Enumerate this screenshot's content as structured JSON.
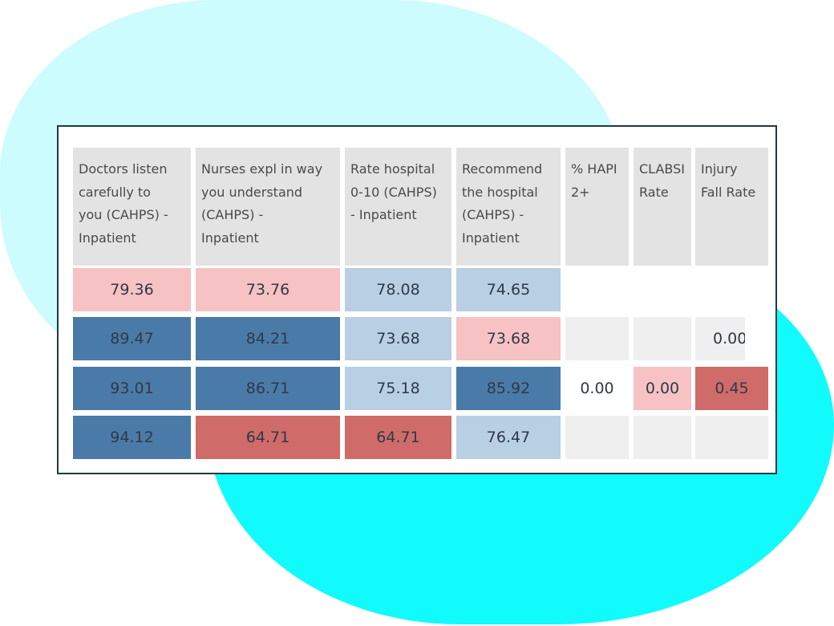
{
  "table": {
    "headers": [
      "Doctors listen\ncarefully to\nyou (CAHPS) -\nInpatient",
      "Nurses expl in way\nyou understand\n(CAHPS) -\nInpatient",
      "Rate hospital\n0-10 (CAHPS)\n- Inpatient",
      "Recommend\nthe hospital\n(CAHPS) -\nInpatient",
      "% HAPI\n2+",
      "CLABSI\nRate",
      "Injury\nFall Rate"
    ],
    "rows": [
      [
        "79.36",
        "73.76",
        "78.08",
        "74.65",
        "",
        "",
        ""
      ],
      [
        "89.47",
        "84.21",
        "73.68",
        "73.68",
        "",
        "",
        "0.00"
      ],
      [
        "93.01",
        "86.71",
        "75.18",
        "85.92",
        "0.00",
        "0.00",
        "0.45"
      ],
      [
        "94.12",
        "64.71",
        "64.71",
        "76.47",
        "",
        "",
        ""
      ]
    ],
    "cell_colors": [
      [
        "#f6c2c3",
        "#f6c2c3",
        "#b9cfe3",
        "#b9cfe3",
        "#ffffff",
        "#ffffff",
        "#ffffff"
      ],
      [
        "#4a7aa8",
        "#4a7aa8",
        "#b9cfe3",
        "#f6c2c3",
        "#efefef",
        "#efefef",
        "#efefef"
      ],
      [
        "#4a7aa8",
        "#4a7aa8",
        "#b9cfe3",
        "#4a7aa8",
        "#ffffff",
        "#f6c2c3",
        "#cf6b69"
      ],
      [
        "#4a7aa8",
        "#cf6b69",
        "#cf6b69",
        "#b9cfe3",
        "#efefef",
        "#efefef",
        "#efefef"
      ]
    ]
  },
  "colors": {
    "dark_blue": "#4a7aa8",
    "light_blue": "#b9cfe3",
    "light_red": "#f6c2c3",
    "dark_red": "#cf6b69",
    "empty_gray": "#efefef",
    "header_gray": "#e3e3e3",
    "frame_border": "#1f3a3d",
    "blob_light": "#ccfcfd",
    "blob_bright": "#12fbfc"
  }
}
